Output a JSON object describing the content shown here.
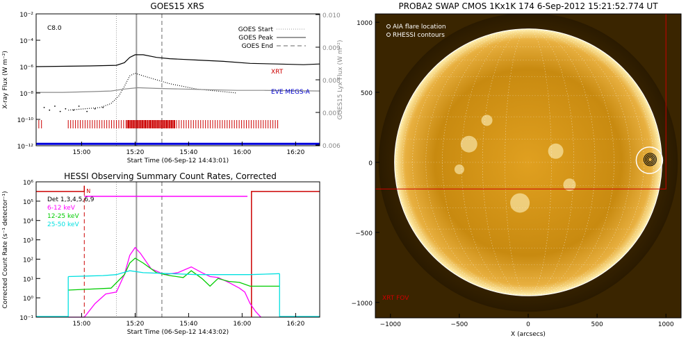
{
  "chart_data": [
    {
      "type": "line",
      "title": "GOES15 XRS",
      "xlabel": "Start Time (06-Sep-12 14:43:01)",
      "ylabel": "X-ray Flux (W m⁻²)",
      "ylabel_right": "GOES15 Lyx Flux (W m⁻²)",
      "x_ticks": [
        "15:00",
        "15:20",
        "15:40",
        "16:00",
        "16:20"
      ],
      "x_tick_minutes": [
        17,
        37,
        57,
        77,
        97
      ],
      "xlim_minutes": [
        0,
        106
      ],
      "y_scale": "log",
      "ylim_exp": [
        -12,
        -2
      ],
      "y_ticks": [
        "10⁻¹²",
        "10⁻¹⁰",
        "10⁻⁸",
        "10⁻⁶",
        "10⁻⁴",
        "10⁻²"
      ],
      "y_tick_exps": [
        -12,
        -10,
        -8,
        -6,
        -4,
        -2
      ],
      "y_right_ticks": [
        "0.006",
        "0.007",
        "0.008",
        "0.009",
        "0.010"
      ],
      "y_right_values": [
        0.006,
        0.007,
        0.008,
        0.009,
        0.01
      ],
      "flare_class": "C8.0",
      "legend": [
        "GOES Start",
        "GOES Peak",
        "GOES End"
      ],
      "event_lines_minutes": {
        "start": 30,
        "peak": 37.5,
        "end": 47
      },
      "series": [
        {
          "name": "",
          "color": "#000000",
          "x": [
            0,
            20,
            30,
            33,
            35,
            37,
            40,
            45,
            50,
            60,
            70,
            80,
            90,
            100,
            106
          ],
          "y_exp": [
            -6.0,
            -5.95,
            -5.9,
            -5.7,
            -5.3,
            -5.1,
            -5.1,
            -5.3,
            -5.4,
            -5.5,
            -5.6,
            -5.75,
            -5.8,
            -5.85,
            -5.8
          ]
        },
        {
          "name": "",
          "color": "#000000",
          "dotted": true,
          "x": [
            12,
            18,
            24,
            28,
            31,
            33,
            35,
            37,
            40,
            45,
            50,
            60,
            70,
            75
          ],
          "y_exp": [
            -9.3,
            -9.2,
            -9.1,
            -8.8,
            -8.2,
            -7.5,
            -6.7,
            -6.5,
            -6.7,
            -7.0,
            -7.3,
            -7.7,
            -7.9,
            -8.0
          ]
        },
        {
          "name": "",
          "color": "#888888",
          "x": [
            0,
            10,
            20,
            28,
            33,
            38,
            45,
            55,
            65,
            75,
            85,
            95,
            106
          ],
          "y_exp": [
            -7.95,
            -7.95,
            -7.9,
            -7.85,
            -7.7,
            -7.6,
            -7.65,
            -7.7,
            -7.75,
            -7.8,
            -7.8,
            -7.82,
            -7.85
          ]
        },
        {
          "name": "",
          "color": "#0000dd",
          "x": [
            0,
            106
          ],
          "y_exp": [
            -11.85,
            -11.85
          ]
        }
      ],
      "annotations": [
        {
          "text": "XRT",
          "color": "#cc0000"
        },
        {
          "text": "EVE MEGS-A",
          "color": "#0000cc"
        }
      ]
    },
    {
      "type": "line",
      "title": "HESSI Observing Summary Count Rates, Corrected",
      "xlabel": "Start Time (06-Sep-12 14:43:02)",
      "ylabel": "Corrected Count Rate (s⁻¹ detector⁻¹)",
      "x_ticks": [
        "15:00",
        "15:20",
        "15:40",
        "16:00",
        "16:20"
      ],
      "x_tick_minutes": [
        17,
        37,
        57,
        77,
        97
      ],
      "xlim_minutes": [
        0,
        106
      ],
      "y_scale": "log",
      "ylim_exp": [
        -1,
        6
      ],
      "y_ticks": [
        "10⁻¹",
        "10⁰",
        "10¹",
        "10²",
        "10³",
        "10⁴",
        "10⁵",
        "10⁶"
      ],
      "y_tick_exps": [
        -1,
        0,
        1,
        2,
        3,
        4,
        5,
        6
      ],
      "detectors": "Det 1,3,4,5,6,9",
      "flag_label": "N",
      "series": [
        {
          "name": "6-12 keV",
          "color": "#ff00ff",
          "x": [
            12,
            18,
            22,
            26,
            30,
            33,
            35,
            37,
            39,
            43,
            48,
            53,
            58,
            62,
            65,
            68,
            72,
            76,
            78,
            80,
            82,
            84
          ],
          "y_exp": [
            -1,
            -1,
            -0.3,
            0.2,
            0.3,
            1.2,
            2.2,
            2.6,
            2.3,
            1.5,
            1.2,
            1.3,
            1.6,
            1.3,
            1.1,
            1.05,
            0.8,
            0.5,
            0.3,
            -0.3,
            -0.7,
            -1
          ]
        },
        {
          "name": "12-25 keV",
          "color": "#00cc00",
          "x": [
            12,
            20,
            28,
            33,
            35,
            37,
            40,
            45,
            50,
            55,
            58,
            62,
            65,
            68,
            72,
            76,
            80,
            84,
            86,
            91
          ],
          "y_exp": [
            0.4,
            0.45,
            0.5,
            1.2,
            1.8,
            2.05,
            1.8,
            1.3,
            1.15,
            1.05,
            1.4,
            1.0,
            0.6,
            1.0,
            0.85,
            0.8,
            0.6,
            0.6,
            0.6,
            0.6
          ]
        },
        {
          "name": "25-50 keV",
          "color": "#00e0e0",
          "x": [
            12,
            25,
            30,
            35,
            40,
            50,
            60,
            70,
            80,
            91
          ],
          "y_exp": [
            1.1,
            1.15,
            1.2,
            1.4,
            1.3,
            1.25,
            1.2,
            1.2,
            1.2,
            1.25
          ]
        }
      ]
    },
    {
      "type": "heatmap",
      "title": "PROBA2 SWAP CMOS 1Kx1K 174   6-Sep-2012 15:21:52.774 UT",
      "xlabel": "X (arcsecs)",
      "x_ticks": [
        "−1000",
        "−500",
        "0",
        "500",
        "1000"
      ],
      "x_tick_values": [
        -1000,
        -500,
        0,
        500,
        1000
      ],
      "xlim": [
        -1110,
        1110
      ],
      "y_ticks": [
        "−1000",
        "−500",
        "0",
        "500",
        "1000"
      ],
      "y_tick_values": [
        -1000,
        -500,
        0,
        500,
        1000
      ],
      "ylim": [
        -1110,
        1060
      ],
      "legend": [
        "AIA flare location",
        "RHESSI contours"
      ],
      "fov_label": "XRT FOV",
      "solar_radius": 970,
      "flare_location": [
        880,
        15
      ],
      "xrt_fov": {
        "x0": -1110,
        "x1": 1000,
        "y0": -190,
        "y1": 1060
      }
    }
  ]
}
